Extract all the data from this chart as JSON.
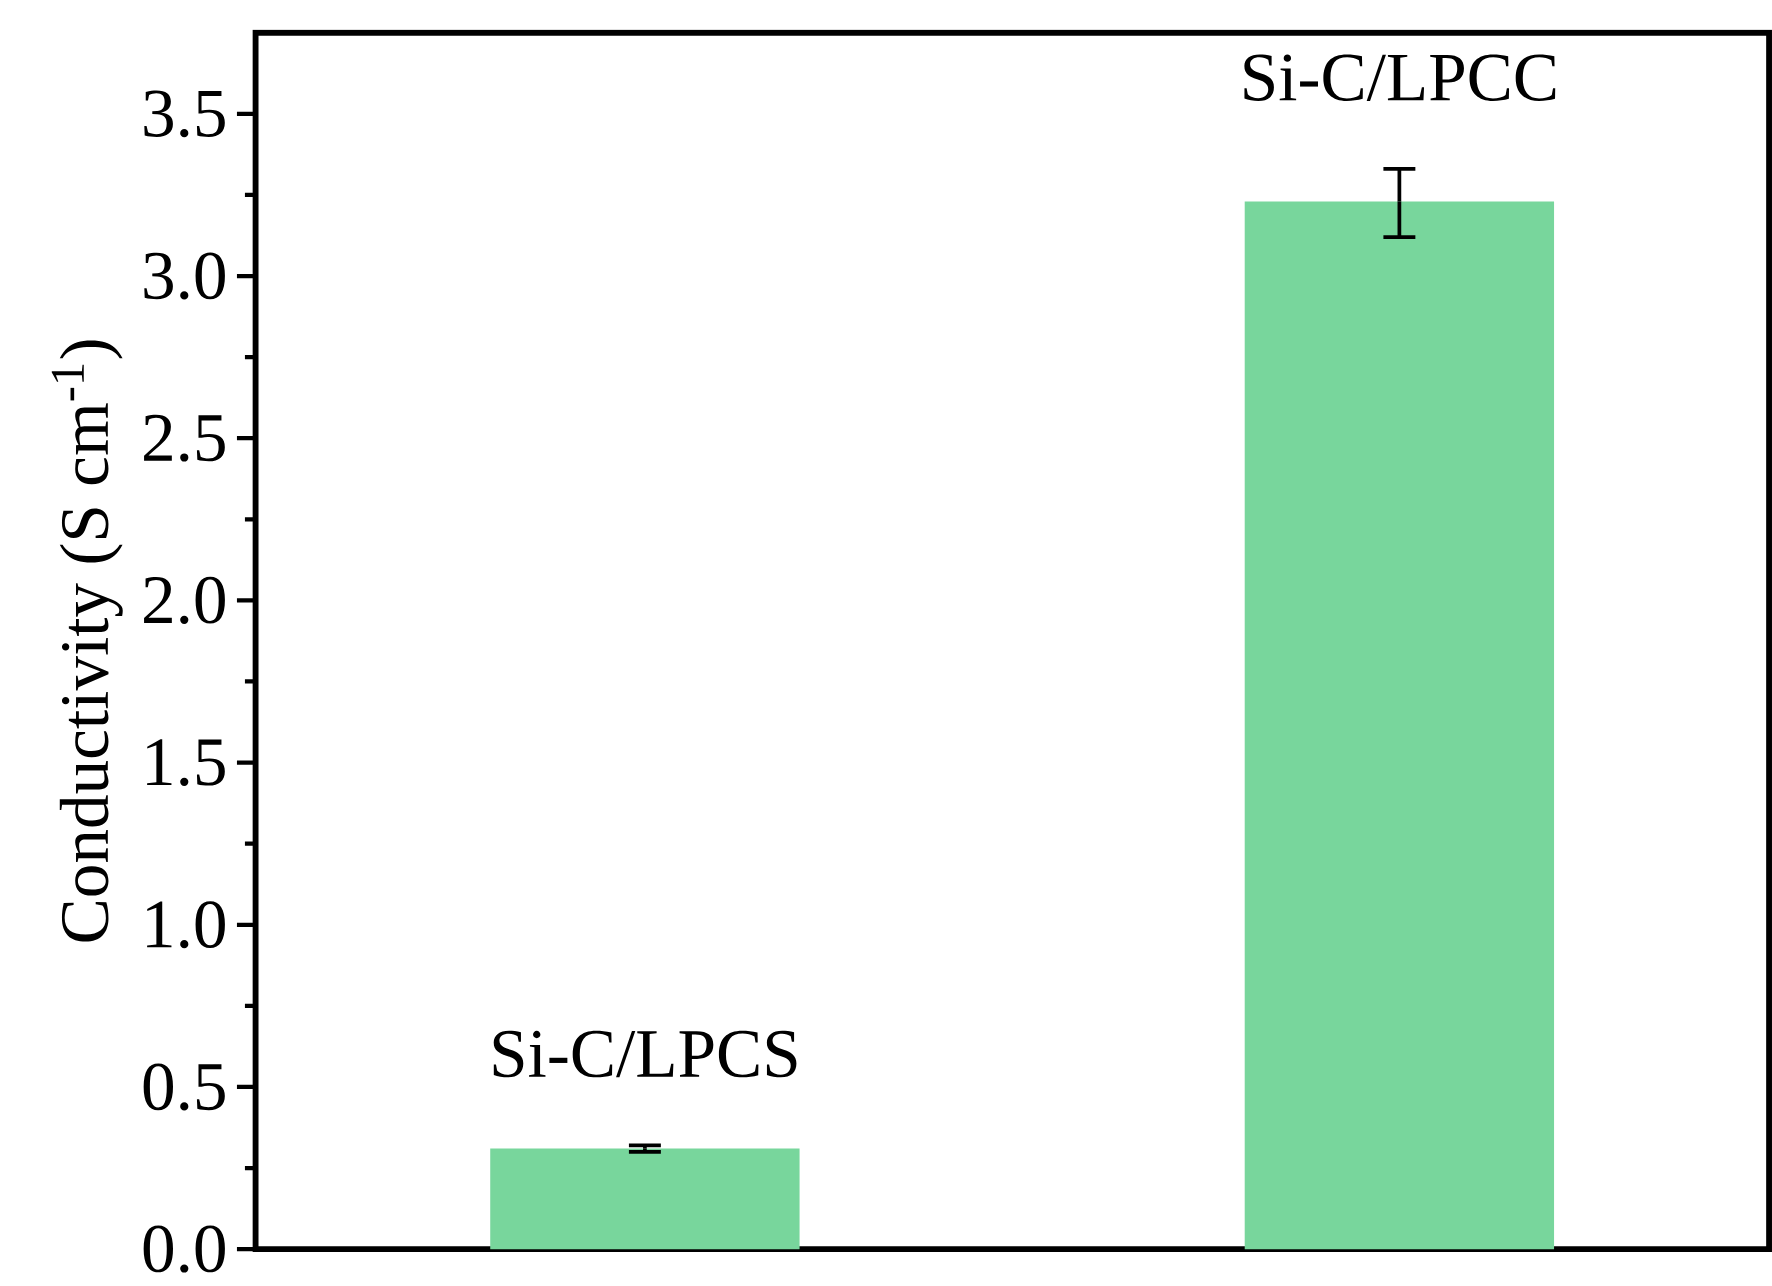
{
  "chart_data": {
    "type": "bar",
    "ylabel": "Conductivity (S cm$^{-1}$)",
    "categories": [
      "Si-C/LPCS",
      "Si-C/LPCC"
    ],
    "values": [
      0.31,
      3.23
    ],
    "errors": [
      [
        0.3,
        0.32
      ],
      [
        3.12,
        3.33
      ]
    ],
    "color": "#78d69c",
    "ylim": [
      0,
      3.75
    ],
    "yticks": [
      {
        "value": 0,
        "label": "0.0"
      },
      0.5,
      {
        "value": 1,
        "label": "1.0"
      },
      1.5,
      {
        "value": 2,
        "label": "2.0"
      },
      2.5,
      {
        "value": 3,
        "label": "3.0"
      },
      3.5
    ],
    "tick_labels": "y"
  }
}
